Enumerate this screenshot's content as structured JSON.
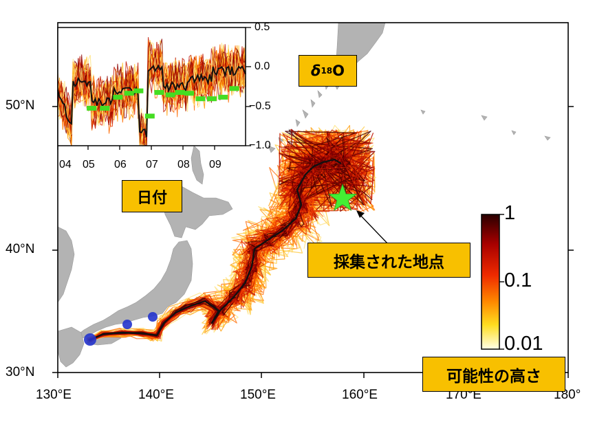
{
  "map": {
    "lon_labels": [
      "130°E",
      "140°E",
      "150°E",
      "160°E",
      "170°E",
      "180°"
    ],
    "lat_labels": [
      "50°N",
      "40°N",
      "30°N"
    ],
    "lon_range": [
      130,
      180
    ],
    "lat_range": [
      30,
      56
    ],
    "colors": {
      "land": "#b3b3b3",
      "ocean": "#ffffff",
      "track_strong": "#4a0000",
      "track_mid": "#e83000",
      "track_weak": "#ffe27a",
      "mean_track": "#111111",
      "release_marker": "#2233cc",
      "sample_star": "#44ee33",
      "callout_fill": "#f8c000"
    }
  },
  "inset": {
    "x_ticks": [
      "04",
      "05",
      "06",
      "07",
      "08",
      "09"
    ],
    "y_ticks": [
      "0.5",
      "0.0",
      "−0.5",
      "−1.0"
    ],
    "ylim": [
      -1.0,
      0.5
    ],
    "measured_color": "#44dd22"
  },
  "colorbar": {
    "labels": [
      "1",
      "0.1",
      "0.01"
    ],
    "scale": "log"
  },
  "callouts": {
    "isotope_prefix": "δ",
    "isotope_sup": "18",
    "isotope_suffix": "O",
    "date": "日付",
    "sample_site": "採集された地点",
    "probability": "可能性の高さ"
  }
}
